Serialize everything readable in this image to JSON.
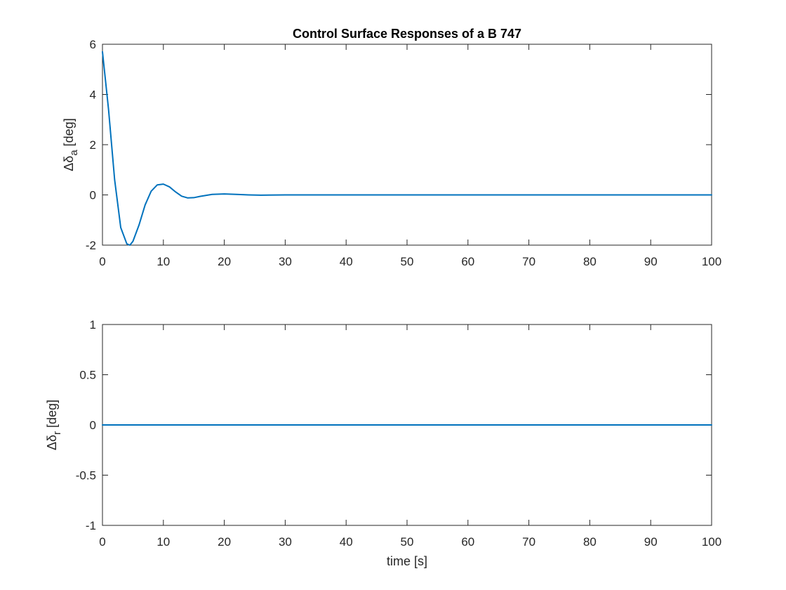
{
  "chart_data": [
    {
      "type": "line",
      "title": "Control Surface Responses of a B 747",
      "xlabel": "",
      "ylabel": {
        "prefix": "Δδ",
        "sub": "a",
        "suffix": " [deg]"
      },
      "xlim": [
        0,
        100
      ],
      "ylim": [
        -2,
        6
      ],
      "xticks": [
        0,
        10,
        20,
        30,
        40,
        50,
        60,
        70,
        80,
        90,
        100
      ],
      "yticks": [
        -2,
        0,
        2,
        4,
        6
      ],
      "ytick_labels": [
        "-2",
        "0",
        "2",
        "4",
        "6"
      ],
      "grid": false,
      "series": [
        {
          "color": "#0072BD",
          "x": [
            0,
            1,
            2,
            3,
            4,
            4.5,
            5,
            6,
            7,
            8,
            9,
            10,
            11,
            12,
            13,
            14,
            15,
            16,
            18,
            20,
            22,
            24,
            26,
            30,
            40,
            50,
            60,
            70,
            80,
            90,
            100
          ],
          "y": [
            5.7,
            3.4,
            0.6,
            -1.3,
            -1.95,
            -2.0,
            -1.85,
            -1.2,
            -0.4,
            0.15,
            0.4,
            0.43,
            0.32,
            0.12,
            -0.05,
            -0.12,
            -0.11,
            -0.06,
            0.02,
            0.04,
            0.02,
            0.0,
            -0.01,
            0,
            0,
            0,
            0,
            0,
            0,
            0,
            0
          ]
        }
      ]
    },
    {
      "type": "line",
      "title": "",
      "xlabel": "time [s]",
      "ylabel": {
        "prefix": "Δδ",
        "sub": "r",
        "suffix": " [deg]"
      },
      "xlim": [
        0,
        100
      ],
      "ylim": [
        -1,
        1
      ],
      "xticks": [
        0,
        10,
        20,
        30,
        40,
        50,
        60,
        70,
        80,
        90,
        100
      ],
      "yticks": [
        -1,
        -0.5,
        0,
        0.5,
        1
      ],
      "ytick_labels": [
        "-1",
        "-0.5",
        "0",
        "0.5",
        "1"
      ],
      "grid": false,
      "series": [
        {
          "color": "#0072BD",
          "x": [
            0,
            100
          ],
          "y": [
            0,
            0
          ]
        }
      ]
    }
  ]
}
